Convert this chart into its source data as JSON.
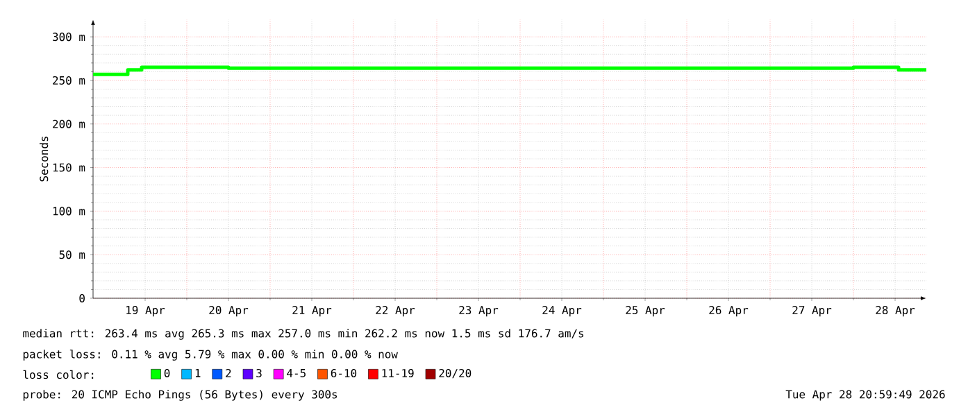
{
  "chart_data": {
    "type": "step",
    "ylabel": "Seconds",
    "legend_title": "loss color:",
    "legend": "bottom",
    "grid": true,
    "marker": "none",
    "line_style": "solid",
    "xlim": [
      "2026-04-18T21:00",
      "2026-04-28T21:00"
    ],
    "xticks": [
      {
        "value": "2026-04-19T12:00",
        "label": "19 Apr"
      },
      {
        "value": "2026-04-20T12:00",
        "label": "20 Apr"
      },
      {
        "value": "2026-04-21T12:00",
        "label": "21 Apr"
      },
      {
        "value": "2026-04-22T12:00",
        "label": "22 Apr"
      },
      {
        "value": "2026-04-23T12:00",
        "label": "23 Apr"
      },
      {
        "value": "2026-04-24T12:00",
        "label": "24 Apr"
      },
      {
        "value": "2026-04-25T12:00",
        "label": "25 Apr"
      },
      {
        "value": "2026-04-26T12:00",
        "label": "26 Apr"
      },
      {
        "value": "2026-04-27T12:00",
        "label": "27 Apr"
      },
      {
        "value": "2026-04-28T12:00",
        "label": "28 Apr"
      }
    ],
    "ylim": [
      0,
      320
    ],
    "yticks": [
      {
        "value": 0,
        "label": "0"
      },
      {
        "value": 50,
        "label": "50 m"
      },
      {
        "value": 100,
        "label": "100 m"
      },
      {
        "value": 150,
        "label": "150 m"
      },
      {
        "value": 200,
        "label": "200 m"
      },
      {
        "value": 250,
        "label": "250 m"
      },
      {
        "value": 300,
        "label": "300 m"
      }
    ],
    "x": [
      "2026-04-18T21:00",
      "2026-04-19T07:00",
      "2026-04-19T11:00",
      "2026-04-20T00:00",
      "2026-04-20T12:00",
      "2026-04-21T00:00",
      "2026-04-21T12:00",
      "2026-04-22T00:00",
      "2026-04-22T12:00",
      "2026-04-23T00:00",
      "2026-04-23T12:00",
      "2026-04-24T00:00",
      "2026-04-24T12:00",
      "2026-04-25T00:00",
      "2026-04-25T12:00",
      "2026-04-26T00:00",
      "2026-04-26T12:00",
      "2026-04-27T00:00",
      "2026-04-27T12:00",
      "2026-04-28T00:00",
      "2026-04-28T13:00",
      "2026-04-28T21:00"
    ],
    "series": [
      {
        "name": "0",
        "color": "#00ff00",
        "values": [
          257,
          262,
          265,
          265,
          264,
          264,
          264,
          264,
          264,
          264,
          264,
          264,
          264,
          264,
          264,
          264,
          264,
          264,
          264,
          265,
          262,
          262
        ]
      },
      {
        "name": "1",
        "color": "#00b8ff",
        "values": [
          null,
          null,
          null,
          null,
          null,
          null,
          null,
          null,
          null,
          null,
          null,
          null,
          null,
          null,
          null,
          null,
          null,
          null,
          null,
          null,
          null,
          null
        ]
      },
      {
        "name": "2",
        "color": "#0059ff",
        "values": [
          null,
          null,
          null,
          null,
          null,
          null,
          null,
          null,
          null,
          null,
          null,
          null,
          null,
          null,
          null,
          null,
          null,
          null,
          null,
          null,
          null,
          null
        ]
      },
      {
        "name": "3",
        "color": "#5e00ff",
        "values": [
          null,
          null,
          null,
          null,
          null,
          null,
          null,
          null,
          null,
          null,
          null,
          null,
          null,
          null,
          null,
          null,
          null,
          null,
          null,
          null,
          null,
          null
        ]
      },
      {
        "name": "4-5",
        "color": "#ff00fe",
        "values": [
          null,
          null,
          null,
          null,
          null,
          null,
          null,
          null,
          null,
          null,
          null,
          null,
          null,
          null,
          null,
          null,
          null,
          null,
          null,
          null,
          null,
          null
        ]
      },
      {
        "name": "6-10",
        "color": "#ff5500",
        "values": [
          null,
          null,
          null,
          null,
          null,
          null,
          null,
          null,
          null,
          null,
          null,
          null,
          null,
          null,
          null,
          null,
          null,
          null,
          null,
          null,
          null,
          null
        ]
      },
      {
        "name": "11-19",
        "color": "#ff0000",
        "values": [
          null,
          null,
          null,
          null,
          null,
          null,
          null,
          null,
          null,
          null,
          null,
          null,
          null,
          null,
          null,
          null,
          null,
          null,
          null,
          null,
          null,
          null
        ]
      },
      {
        "name": "20/20",
        "color": "#a10000",
        "values": [
          null,
          null,
          null,
          null,
          null,
          null,
          null,
          null,
          null,
          null,
          null,
          null,
          null,
          null,
          null,
          null,
          null,
          null,
          null,
          null,
          null,
          null
        ]
      }
    ],
    "annotations": [
      "median rtt:  263.4 ms avg  265.3 ms max  257.0 ms min  262.2 ms now  1.5 ms sd  176.7    am/s",
      "packet loss: 0.11 % avg  5.79 % max  0.00 % min  0.00 % now",
      "probe:       20 ICMP Echo Pings (56 Bytes) every 300s",
      "Tue Apr 28 20:59:49 2026"
    ]
  }
}
